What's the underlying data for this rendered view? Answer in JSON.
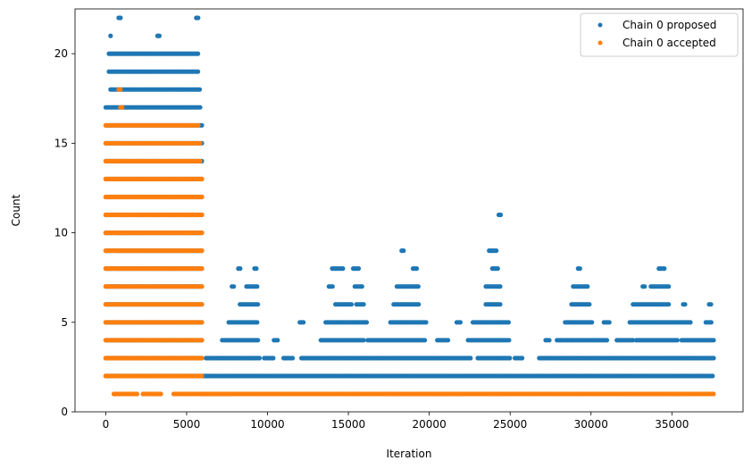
{
  "chart_data": {
    "type": "scatter",
    "xlabel": "Iteration",
    "ylabel": "Count",
    "xlim": [
      -1900,
      39400
    ],
    "ylim": [
      0,
      22.5
    ],
    "xticks": [
      0,
      5000,
      10000,
      15000,
      20000,
      25000,
      30000,
      35000
    ],
    "yticks": [
      0,
      5,
      10,
      15,
      20
    ],
    "legend_position": "top-right",
    "series": [
      {
        "name": "Chain 0 proposed",
        "color": "#1f77b4",
        "marker": "circle",
        "bands": [
          {
            "y": 2,
            "x_ranges": [
              [
                0,
                37600
              ]
            ]
          },
          {
            "y": 3,
            "x_ranges": [
              [
                0,
                6000
              ],
              [
                6200,
                9500
              ],
              [
                9800,
                10400
              ],
              [
                11000,
                11600
              ],
              [
                12100,
                22600
              ],
              [
                23000,
                25000
              ],
              [
                25300,
                25800
              ],
              [
                26800,
                37600
              ]
            ]
          },
          {
            "y": 4,
            "x_ranges": [
              [
                0,
                6000
              ],
              [
                7200,
                9500
              ],
              [
                10400,
                10700
              ],
              [
                13300,
                16000
              ],
              [
                16200,
                19800
              ],
              [
                20500,
                21200
              ],
              [
                22400,
                25000
              ],
              [
                27200,
                27500
              ],
              [
                27900,
                31000
              ],
              [
                31600,
                32600
              ],
              [
                32800,
                35400
              ],
              [
                35600,
                37600
              ]
            ]
          },
          {
            "y": 5,
            "x_ranges": [
              [
                0,
                6000
              ],
              [
                7600,
                9400
              ],
              [
                12000,
                12300
              ],
              [
                13600,
                16200
              ],
              [
                17600,
                19800
              ],
              [
                21700,
                22000
              ],
              [
                22700,
                24900
              ],
              [
                28400,
                30100
              ],
              [
                30800,
                31200
              ],
              [
                32400,
                36200
              ],
              [
                37100,
                37500
              ]
            ]
          },
          {
            "y": 6,
            "x_ranges": [
              [
                0,
                6000
              ],
              [
                8300,
                9400
              ],
              [
                14200,
                15200
              ],
              [
                15500,
                16000
              ],
              [
                17800,
                19400
              ],
              [
                23500,
                24400
              ],
              [
                28800,
                30000
              ],
              [
                32600,
                34800
              ],
              [
                35700,
                35900
              ],
              [
                37300,
                37500
              ]
            ]
          },
          {
            "y": 7,
            "x_ranges": [
              [
                0,
                6000
              ],
              [
                7800,
                8000
              ],
              [
                8700,
                9400
              ],
              [
                13800,
                14100
              ],
              [
                15400,
                15900
              ],
              [
                18000,
                19400
              ],
              [
                23500,
                24400
              ],
              [
                28900,
                29800
              ],
              [
                33200,
                33400
              ],
              [
                33700,
                34800
              ]
            ]
          },
          {
            "y": 8,
            "x_ranges": [
              [
                0,
                6000
              ],
              [
                8200,
                8400
              ],
              [
                9200,
                9400
              ],
              [
                14000,
                14700
              ],
              [
                15300,
                15700
              ],
              [
                19000,
                19300
              ],
              [
                23900,
                24300
              ],
              [
                29200,
                29400
              ],
              [
                34200,
                34600
              ]
            ]
          },
          {
            "y": 9,
            "x_ranges": [
              [
                0,
                6000
              ],
              [
                18300,
                18500
              ],
              [
                23700,
                24200
              ]
            ]
          },
          {
            "y": 10,
            "x_ranges": [
              [
                0,
                6000
              ]
            ]
          },
          {
            "y": 11,
            "x_ranges": [
              [
                0,
                6000
              ],
              [
                24300,
                24500
              ]
            ]
          },
          {
            "y": 12,
            "x_ranges": [
              [
                0,
                6000
              ]
            ]
          },
          {
            "y": 13,
            "x_ranges": [
              [
                0,
                6000
              ]
            ]
          },
          {
            "y": 14,
            "x_ranges": [
              [
                0,
                6000
              ]
            ]
          },
          {
            "y": 15,
            "x_ranges": [
              [
                0,
                6000
              ]
            ]
          },
          {
            "y": 16,
            "x_ranges": [
              [
                0,
                6000
              ]
            ]
          },
          {
            "y": 17,
            "x_ranges": [
              [
                0,
                5900
              ]
            ]
          },
          {
            "y": 18,
            "x_ranges": [
              [
                300,
                5900
              ]
            ]
          },
          {
            "y": 19,
            "x_ranges": [
              [
                200,
                5700
              ]
            ]
          },
          {
            "y": 20,
            "x_ranges": [
              [
                200,
                5800
              ]
            ]
          },
          {
            "y": 21,
            "x_ranges": [
              [
                300,
                400
              ],
              [
                3200,
                3400
              ]
            ]
          },
          {
            "y": 22,
            "x_ranges": [
              [
                800,
                1000
              ],
              [
                5600,
                5800
              ]
            ]
          }
        ]
      },
      {
        "name": "Chain 0 accepted",
        "color": "#ff7f0e",
        "marker": "circle",
        "bands": [
          {
            "y": 1,
            "x_ranges": [
              [
                500,
                2000
              ],
              [
                2300,
                3500
              ],
              [
                4200,
                6000
              ],
              [
                6000,
                37600
              ]
            ]
          },
          {
            "y": 2,
            "x_ranges": [
              [
                0,
                6000
              ]
            ]
          },
          {
            "y": 3,
            "x_ranges": [
              [
                0,
                6000
              ]
            ]
          },
          {
            "y": 4,
            "x_ranges": [
              [
                0,
                6000
              ]
            ]
          },
          {
            "y": 5,
            "x_ranges": [
              [
                0,
                6000
              ]
            ]
          },
          {
            "y": 6,
            "x_ranges": [
              [
                0,
                6000
              ]
            ]
          },
          {
            "y": 7,
            "x_ranges": [
              [
                0,
                6000
              ]
            ]
          },
          {
            "y": 8,
            "x_ranges": [
              [
                0,
                6000
              ]
            ]
          },
          {
            "y": 9,
            "x_ranges": [
              [
                0,
                6000
              ]
            ]
          },
          {
            "y": 10,
            "x_ranges": [
              [
                0,
                6000
              ]
            ]
          },
          {
            "y": 11,
            "x_ranges": [
              [
                0,
                6000
              ]
            ]
          },
          {
            "y": 12,
            "x_ranges": [
              [
                0,
                6000
              ]
            ]
          },
          {
            "y": 13,
            "x_ranges": [
              [
                0,
                6000
              ]
            ]
          },
          {
            "y": 14,
            "x_ranges": [
              [
                0,
                5900
              ]
            ]
          },
          {
            "y": 15,
            "x_ranges": [
              [
                0,
                5900
              ]
            ]
          },
          {
            "y": 16,
            "x_ranges": [
              [
                0,
                5800
              ]
            ]
          },
          {
            "y": 17,
            "x_ranges": [
              [
                900,
                1100
              ]
            ]
          },
          {
            "y": 18,
            "x_ranges": [
              [
                800,
                1000
              ]
            ]
          }
        ]
      }
    ]
  }
}
